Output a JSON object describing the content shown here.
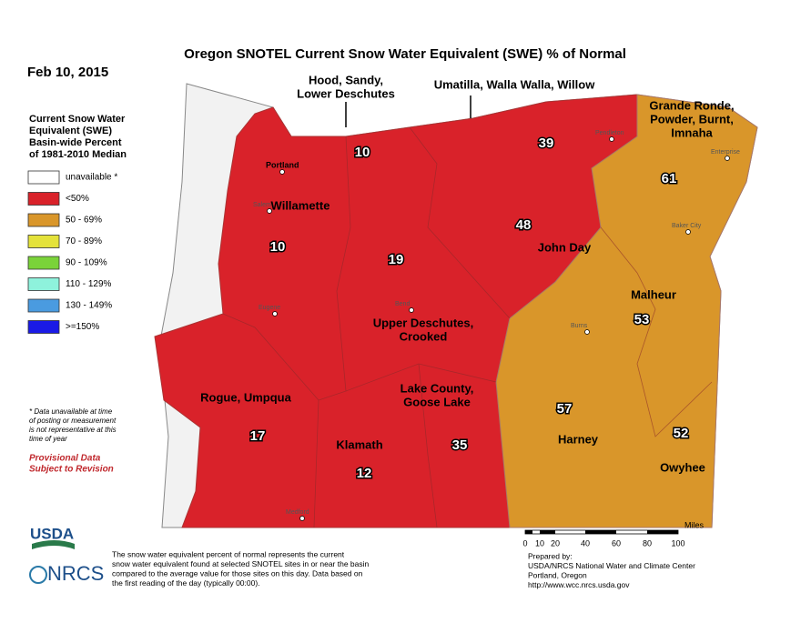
{
  "header": {
    "title": "Oregon SNOTEL Current Snow Water Equivalent (SWE) % of Normal",
    "date": "Feb 10, 2015"
  },
  "legend": {
    "title": [
      "Current Snow Water",
      "Equivalent (SWE)",
      "Basin-wide Percent",
      "of 1981-2010 Median"
    ],
    "items": [
      {
        "label": "unavailable *",
        "color": "#ffffff"
      },
      {
        "label": "<50%",
        "color": "#d9222a"
      },
      {
        "label": "50 - 69%",
        "color": "#d9962a"
      },
      {
        "label": "70 - 89%",
        "color": "#e4e23a"
      },
      {
        "label": "90 - 109%",
        "color": "#7ad339"
      },
      {
        "label": "110 - 129%",
        "color": "#8ef2dc"
      },
      {
        "label": "130 - 149%",
        "color": "#4a9be0"
      },
      {
        "label": ">=150%",
        "color": "#1a1ae6"
      }
    ]
  },
  "note": [
    "* Data unavailable at time",
    "of posting or measurement",
    "is not representative at this",
    "time of year"
  ],
  "provisional": [
    "Provisional Data",
    "Subject to Revision"
  ],
  "callouts": [
    {
      "label": [
        "Hood, Sandy,",
        "Lower Deschutes"
      ]
    },
    {
      "label": [
        "Umatilla, Walla Walla, Willow"
      ]
    }
  ],
  "basins": [
    {
      "name": [
        "Willamette"
      ],
      "value": "10"
    },
    {
      "name": [],
      "value": "10"
    },
    {
      "name": [],
      "value": "39"
    },
    {
      "name": [
        "Grande Ronde,",
        "Powder, Burnt,",
        "Imnaha"
      ],
      "value": "61"
    },
    {
      "name": [
        "John Day"
      ],
      "value": "48"
    },
    {
      "name": [
        "Upper Deschutes,",
        "Crooked"
      ],
      "value": "19"
    },
    {
      "name": [
        "Malheur"
      ],
      "value": "53"
    },
    {
      "name": [
        "Rogue, Umpqua"
      ],
      "value": "17"
    },
    {
      "name": [
        "Klamath"
      ],
      "value": "12"
    },
    {
      "name": [
        "Lake County,",
        "Goose Lake"
      ],
      "value": "35"
    },
    {
      "name": [
        "Harney"
      ],
      "value": "57"
    },
    {
      "name": [
        "Owyhee"
      ],
      "value": "52"
    }
  ],
  "cities": [
    "Portland",
    "Salem",
    "Eugene",
    "Bend",
    "Medford",
    "Pendleton",
    "Enterprise",
    "Baker City",
    "Burns"
  ],
  "scale": {
    "unit": "Miles",
    "ticks": [
      "0",
      "10",
      "20",
      "40",
      "60",
      "80",
      "100"
    ]
  },
  "footer": {
    "logos": [
      "USDA",
      "NRCS"
    ],
    "description": [
      "The snow water equivalent percent of normal represents the current",
      "snow water equivalent found at selected SNOTEL sites in or near the basin",
      "compared to the average value for those sites on this day. Data based on",
      "the first reading of the day (typically 00:00)."
    ],
    "credit": [
      "Prepared by:",
      "USDA/NRCS National Water and Climate Center",
      "Portland, Oregon",
      "http://www.wcc.nrcs.usda.gov"
    ]
  }
}
